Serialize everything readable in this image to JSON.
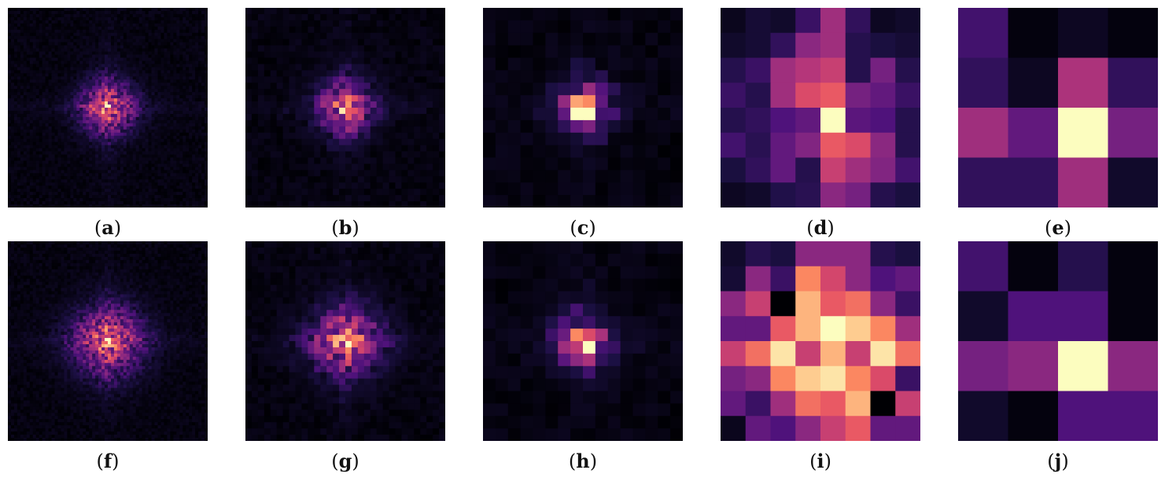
{
  "figure": {
    "colormap": "magma",
    "background": "#ffffff"
  },
  "chart_data": [
    {
      "type": "heatmap",
      "label": "a",
      "grid": 64,
      "pattern": "spectrum"
    },
    {
      "type": "heatmap",
      "label": "b",
      "grid": 32,
      "pattern": "spectrum"
    },
    {
      "type": "heatmap",
      "label": "c",
      "grid": 16,
      "pattern": "spectrum"
    },
    {
      "type": "heatmap",
      "label": "d",
      "grid": 8,
      "pattern": "matrix",
      "values": [
        [
          0.05,
          0.1,
          0.08,
          0.2,
          0.45,
          0.18,
          0.06,
          0.08
        ],
        [
          0.08,
          0.1,
          0.18,
          0.4,
          0.45,
          0.15,
          0.12,
          0.1
        ],
        [
          0.15,
          0.2,
          0.45,
          0.5,
          0.55,
          0.15,
          0.35,
          0.15
        ],
        [
          0.2,
          0.15,
          0.45,
          0.6,
          0.65,
          0.35,
          0.3,
          0.2
        ],
        [
          0.15,
          0.18,
          0.25,
          0.3,
          1.0,
          0.28,
          0.25,
          0.15
        ],
        [
          0.22,
          0.16,
          0.3,
          0.38,
          0.65,
          0.6,
          0.4,
          0.15
        ],
        [
          0.12,
          0.18,
          0.3,
          0.15,
          0.55,
          0.45,
          0.38,
          0.22
        ],
        [
          0.06,
          0.08,
          0.14,
          0.16,
          0.4,
          0.35,
          0.15,
          0.12
        ]
      ]
    },
    {
      "type": "heatmap",
      "label": "e",
      "grid": 4,
      "pattern": "matrix",
      "values": [
        [
          0.22,
          0.02,
          0.06,
          0.02
        ],
        [
          0.18,
          0.06,
          0.48,
          0.18
        ],
        [
          0.45,
          0.3,
          1.0,
          0.35
        ],
        [
          0.18,
          0.18,
          0.45,
          0.08
        ]
      ]
    },
    {
      "type": "heatmap",
      "label": "f",
      "grid": 64,
      "pattern": "spectrum2"
    },
    {
      "type": "heatmap",
      "label": "g",
      "grid": 32,
      "pattern": "spectrum2"
    },
    {
      "type": "heatmap",
      "label": "h",
      "grid": 16,
      "pattern": "spectrum"
    },
    {
      "type": "heatmap",
      "label": "i",
      "grid": 8,
      "pattern": "matrix",
      "values": [
        [
          0.08,
          0.15,
          0.12,
          0.4,
          0.4,
          0.4,
          0.15,
          0.12
        ],
        [
          0.1,
          0.4,
          0.2,
          0.75,
          0.58,
          0.4,
          0.25,
          0.3
        ],
        [
          0.4,
          0.55,
          0.0,
          0.85,
          0.65,
          0.7,
          0.4,
          0.2
        ],
        [
          0.3,
          0.3,
          0.65,
          0.85,
          1.0,
          0.9,
          0.75,
          0.45
        ],
        [
          0.55,
          0.7,
          0.95,
          0.55,
          0.85,
          0.55,
          0.95,
          0.7
        ],
        [
          0.35,
          0.4,
          0.75,
          0.9,
          0.95,
          0.75,
          0.6,
          0.2
        ],
        [
          0.3,
          0.2,
          0.45,
          0.7,
          0.65,
          0.85,
          0.0,
          0.55
        ],
        [
          0.05,
          0.3,
          0.25,
          0.4,
          0.55,
          0.65,
          0.3,
          0.3
        ]
      ]
    },
    {
      "type": "heatmap",
      "label": "j",
      "grid": 4,
      "pattern": "matrix",
      "values": [
        [
          0.22,
          0.02,
          0.15,
          0.02
        ],
        [
          0.08,
          0.25,
          0.25,
          0.02
        ],
        [
          0.35,
          0.4,
          1.0,
          0.4
        ],
        [
          0.08,
          0.02,
          0.25,
          0.25
        ]
      ]
    }
  ]
}
